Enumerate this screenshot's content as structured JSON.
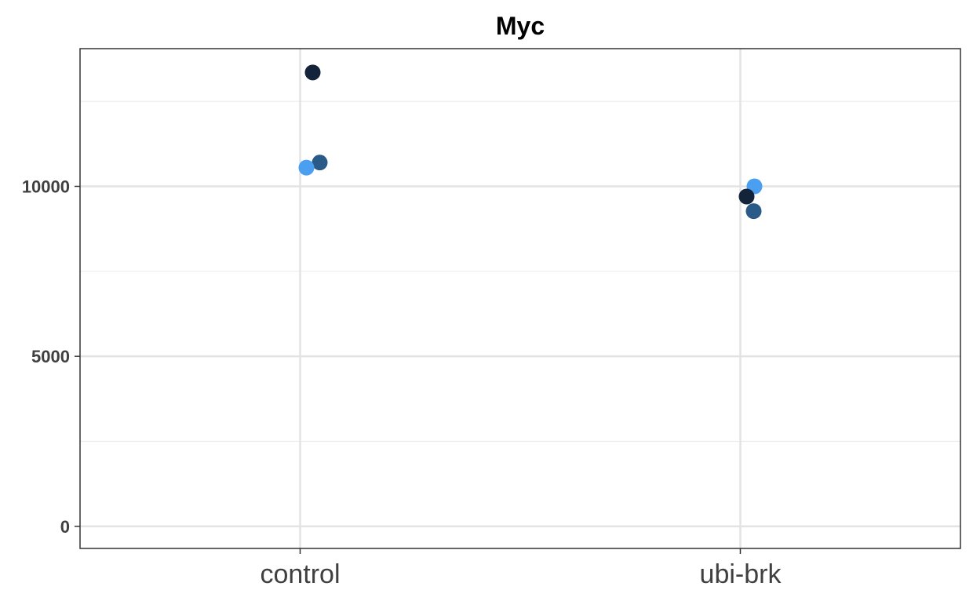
{
  "chart_data": {
    "type": "scatter",
    "title": "Myc",
    "xlabel": "",
    "ylabel": "",
    "categories": [
      "control",
      "ubi-brk"
    ],
    "y_ticks": [
      0,
      5000,
      10000
    ],
    "y_tick_labels": [
      "0",
      "5000",
      "10000"
    ],
    "ylim": [
      -650,
      14050
    ],
    "grid": true,
    "points": [
      {
        "category": "control",
        "value": 13350,
        "color": "#132339"
      },
      {
        "category": "control",
        "value": 10700,
        "color": "#2a5a87"
      },
      {
        "category": "control",
        "value": 10550,
        "color": "#4a9ff0"
      },
      {
        "category": "ubi-brk",
        "value": 10000,
        "color": "#4a9ff0"
      },
      {
        "category": "ubi-brk",
        "value": 9700,
        "color": "#132339"
      },
      {
        "category": "ubi-brk",
        "value": 9270,
        "color": "#2a5a87"
      }
    ]
  }
}
